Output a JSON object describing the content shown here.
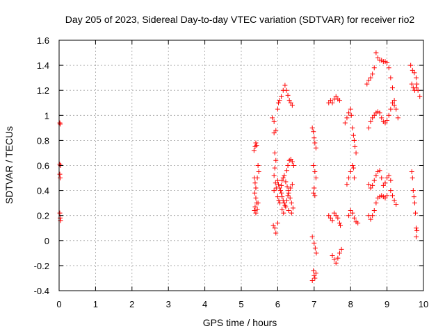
{
  "chart_data": {
    "type": "scatter",
    "title": "Day 205 of 2023, Sidereal Day-to-day VTEC variation (SDTVAR) for receiver rio2",
    "xlabel": "GPS time / hours",
    "ylabel": "SDTVAR / TECUs",
    "xlim": [
      0,
      10
    ],
    "ylim": [
      -0.4,
      1.6
    ],
    "xticks": [
      "0",
      "1",
      "2",
      "3",
      "4",
      "5",
      "6",
      "7",
      "8",
      "9",
      "10"
    ],
    "yticks": [
      "-0.4",
      "-0.2",
      "0",
      "0.2",
      "0.4",
      "0.6",
      "0.8",
      "1",
      "1.2",
      "1.4",
      "1.6"
    ],
    "grid": true,
    "marker": "+",
    "color": "#ff0000",
    "series": [
      {
        "name": "SDTVAR",
        "points": [
          [
            0.02,
            0.94
          ],
          [
            0.03,
            0.93
          ],
          [
            0.02,
            0.61
          ],
          [
            0.04,
            0.6
          ],
          [
            0.02,
            0.53
          ],
          [
            0.03,
            0.5
          ],
          [
            0.02,
            0.22
          ],
          [
            0.03,
            0.18
          ],
          [
            0.04,
            0.16
          ],
          [
            5.35,
            0.72
          ],
          [
            5.38,
            0.75
          ],
          [
            5.4,
            0.78
          ],
          [
            5.42,
            0.76
          ],
          [
            5.36,
            0.5
          ],
          [
            5.38,
            0.46
          ],
          [
            5.4,
            0.42
          ],
          [
            5.37,
            0.38
          ],
          [
            5.4,
            0.34
          ],
          [
            5.42,
            0.3
          ],
          [
            5.38,
            0.27
          ],
          [
            5.36,
            0.24
          ],
          [
            5.4,
            0.22
          ],
          [
            5.44,
            0.25
          ],
          [
            5.46,
            0.3
          ],
          [
            5.48,
            0.55
          ],
          [
            5.46,
            0.6
          ],
          [
            5.44,
            0.5
          ],
          [
            5.85,
            0.98
          ],
          [
            5.9,
            0.95
          ],
          [
            5.9,
            0.86
          ],
          [
            5.95,
            0.88
          ],
          [
            5.92,
            0.7
          ],
          [
            5.95,
            0.64
          ],
          [
            5.92,
            0.58
          ],
          [
            5.9,
            0.52
          ],
          [
            5.94,
            0.46
          ],
          [
            5.96,
            0.42
          ],
          [
            5.9,
            0.4
          ],
          [
            5.88,
            0.12
          ],
          [
            5.92,
            0.1
          ],
          [
            5.95,
            0.06
          ],
          [
            6.0,
            0.14
          ],
          [
            6.0,
            1.05
          ],
          [
            6.02,
            1.1
          ],
          [
            6.05,
            1.12
          ],
          [
            6.1,
            1.15
          ],
          [
            6.15,
            1.2
          ],
          [
            6.2,
            1.24
          ],
          [
            6.24,
            1.2
          ],
          [
            6.28,
            1.16
          ],
          [
            6.32,
            1.12
          ],
          [
            6.36,
            1.1
          ],
          [
            6.4,
            1.08
          ],
          [
            6.0,
            0.48
          ],
          [
            6.02,
            0.45
          ],
          [
            6.05,
            0.42
          ],
          [
            6.08,
            0.4
          ],
          [
            6.1,
            0.38
          ],
          [
            6.12,
            0.35
          ],
          [
            6.15,
            0.32
          ],
          [
            6.18,
            0.3
          ],
          [
            6.2,
            0.28
          ],
          [
            6.25,
            0.32
          ],
          [
            6.28,
            0.36
          ],
          [
            6.3,
            0.4
          ],
          [
            6.35,
            0.42
          ],
          [
            6.4,
            0.45
          ],
          [
            6.0,
            0.35
          ],
          [
            6.03,
            0.32
          ],
          [
            6.06,
            0.3
          ],
          [
            6.1,
            0.44
          ],
          [
            6.12,
            0.48
          ],
          [
            6.15,
            0.5
          ],
          [
            6.18,
            0.52
          ],
          [
            6.22,
            0.47
          ],
          [
            6.26,
            0.43
          ],
          [
            6.3,
            0.38
          ],
          [
            6.34,
            0.34
          ],
          [
            6.38,
            0.3
          ],
          [
            6.42,
            0.26
          ],
          [
            6.25,
            0.56
          ],
          [
            6.28,
            0.6
          ],
          [
            6.32,
            0.64
          ],
          [
            6.36,
            0.65
          ],
          [
            6.4,
            0.63
          ],
          [
            6.44,
            0.6
          ],
          [
            6.12,
            0.25
          ],
          [
            6.16,
            0.22
          ],
          [
            6.22,
            0.27
          ],
          [
            6.3,
            0.24
          ],
          [
            6.38,
            0.22
          ],
          [
            6.95,
            0.9
          ],
          [
            6.98,
            0.87
          ],
          [
            7.0,
            0.82
          ],
          [
            7.02,
            0.78
          ],
          [
            7.05,
            0.74
          ],
          [
            6.98,
            0.6
          ],
          [
            7.02,
            0.55
          ],
          [
            7.05,
            0.5
          ],
          [
            7.0,
            0.42
          ],
          [
            6.98,
            0.38
          ],
          [
            7.02,
            0.36
          ],
          [
            6.95,
            0.03
          ],
          [
            7.0,
            -0.02
          ],
          [
            7.03,
            -0.06
          ],
          [
            7.06,
            -0.1
          ],
          [
            6.98,
            -0.24
          ],
          [
            7.0,
            -0.28
          ],
          [
            7.02,
            -0.3
          ],
          [
            6.95,
            -0.32
          ],
          [
            7.05,
            -0.26
          ],
          [
            7.4,
            0.2
          ],
          [
            7.45,
            0.18
          ],
          [
            7.5,
            0.16
          ],
          [
            7.55,
            0.22
          ],
          [
            7.6,
            0.2
          ],
          [
            7.65,
            0.18
          ],
          [
            7.7,
            0.14
          ],
          [
            7.72,
            0.12
          ],
          [
            7.5,
            -0.12
          ],
          [
            7.55,
            -0.15
          ],
          [
            7.6,
            -0.18
          ],
          [
            7.65,
            -0.14
          ],
          [
            7.7,
            -0.1
          ],
          [
            7.75,
            -0.07
          ],
          [
            7.4,
            1.1
          ],
          [
            7.45,
            1.12
          ],
          [
            7.5,
            1.1
          ],
          [
            7.55,
            1.13
          ],
          [
            7.6,
            1.15
          ],
          [
            7.65,
            1.13
          ],
          [
            7.7,
            1.12
          ],
          [
            7.85,
            0.94
          ],
          [
            7.9,
            0.98
          ],
          [
            7.95,
            1.02
          ],
          [
            8.0,
            1.05
          ],
          [
            8.02,
            1.0
          ],
          [
            8.05,
            0.9
          ],
          [
            8.08,
            0.84
          ],
          [
            8.1,
            0.8
          ],
          [
            8.12,
            0.75
          ],
          [
            8.15,
            0.7
          ],
          [
            7.9,
            0.45
          ],
          [
            7.95,
            0.5
          ],
          [
            8.0,
            0.55
          ],
          [
            8.05,
            0.6
          ],
          [
            8.08,
            0.58
          ],
          [
            8.1,
            0.5
          ],
          [
            7.95,
            0.2
          ],
          [
            8.0,
            0.24
          ],
          [
            8.05,
            0.22
          ],
          [
            8.1,
            0.18
          ],
          [
            8.15,
            0.15
          ],
          [
            8.2,
            0.14
          ],
          [
            8.45,
            1.25
          ],
          [
            8.5,
            1.28
          ],
          [
            8.55,
            1.3
          ],
          [
            8.6,
            1.33
          ],
          [
            8.65,
            1.38
          ],
          [
            8.7,
            1.5
          ],
          [
            8.75,
            1.46
          ],
          [
            8.8,
            1.44
          ],
          [
            8.85,
            1.44
          ],
          [
            8.9,
            1.43
          ],
          [
            8.95,
            1.43
          ],
          [
            9.0,
            1.42
          ],
          [
            9.05,
            1.38
          ],
          [
            9.1,
            1.3
          ],
          [
            9.15,
            1.22
          ],
          [
            9.2,
            1.12
          ],
          [
            9.25,
            1.05
          ],
          [
            9.3,
            0.98
          ],
          [
            8.5,
            0.9
          ],
          [
            8.55,
            0.95
          ],
          [
            8.6,
            0.98
          ],
          [
            8.65,
            1.0
          ],
          [
            8.7,
            1.02
          ],
          [
            8.75,
            1.03
          ],
          [
            8.8,
            1.02
          ],
          [
            8.85,
            0.98
          ],
          [
            8.9,
            0.95
          ],
          [
            8.95,
            0.94
          ],
          [
            9.0,
            0.96
          ],
          [
            9.05,
            1.0
          ],
          [
            9.1,
            1.05
          ],
          [
            9.15,
            1.1
          ],
          [
            9.2,
            1.08
          ],
          [
            8.5,
            0.2
          ],
          [
            8.55,
            0.17
          ],
          [
            8.6,
            0.2
          ],
          [
            8.65,
            0.24
          ],
          [
            8.7,
            0.3
          ],
          [
            8.75,
            0.34
          ],
          [
            8.8,
            0.35
          ],
          [
            8.85,
            0.36
          ],
          [
            8.9,
            0.35
          ],
          [
            8.95,
            0.34
          ],
          [
            9.0,
            0.36
          ],
          [
            9.1,
            0.4
          ],
          [
            9.15,
            0.36
          ],
          [
            9.2,
            0.32
          ],
          [
            9.25,
            0.29
          ],
          [
            8.5,
            0.45
          ],
          [
            8.55,
            0.42
          ],
          [
            8.6,
            0.44
          ],
          [
            8.65,
            0.48
          ],
          [
            8.7,
            0.52
          ],
          [
            8.75,
            0.55
          ],
          [
            8.8,
            0.56
          ],
          [
            8.85,
            0.5
          ],
          [
            8.9,
            0.44
          ],
          [
            8.95,
            0.46
          ],
          [
            9.0,
            0.5
          ],
          [
            9.05,
            0.52
          ],
          [
            9.1,
            0.48
          ],
          [
            9.65,
            1.4
          ],
          [
            9.7,
            1.36
          ],
          [
            9.75,
            1.34
          ],
          [
            9.8,
            1.3
          ],
          [
            9.82,
            1.25
          ],
          [
            9.85,
            1.2
          ],
          [
            9.9,
            1.15
          ],
          [
            9.68,
            1.25
          ],
          [
            9.72,
            1.22
          ],
          [
            9.76,
            1.2
          ],
          [
            9.8,
            1.22
          ],
          [
            9.68,
            0.55
          ],
          [
            9.7,
            0.5
          ],
          [
            9.72,
            0.4
          ],
          [
            9.74,
            0.35
          ],
          [
            9.76,
            0.3
          ],
          [
            9.78,
            0.22
          ],
          [
            9.8,
            0.1
          ],
          [
            9.82,
            0.08
          ],
          [
            9.8,
            0.03
          ]
        ]
      }
    ]
  }
}
